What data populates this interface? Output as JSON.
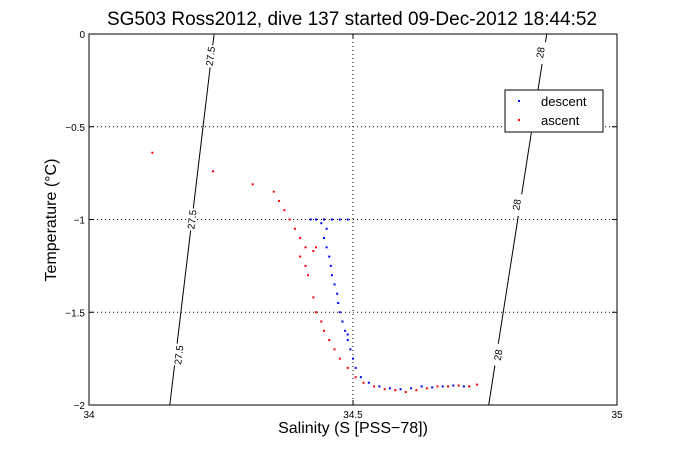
{
  "chart_data": {
    "type": "scatter",
    "title": "SG503 Ross2012, dive 137 started 09-Dec-2012 18:44:52",
    "xlabel": "Salinity (S [PSS−78])",
    "ylabel": "Temperature (°C)",
    "xlim": [
      34,
      35
    ],
    "ylim": [
      -2,
      0
    ],
    "xticks": [
      {
        "value": 34,
        "label": "34"
      },
      {
        "value": 34.5,
        "label": "34.5"
      },
      {
        "value": 35,
        "label": "35"
      }
    ],
    "yticks": [
      {
        "value": 0,
        "label": "0"
      },
      {
        "value": -0.5,
        "label": "−0.5"
      },
      {
        "value": -1,
        "label": "−1"
      },
      {
        "value": -1.5,
        "label": "−1.5"
      },
      {
        "value": -2,
        "label": "−2"
      }
    ],
    "grid": true,
    "legend_position": "top-right",
    "density_contours": [
      {
        "label": "27.5",
        "points": [
          [
            34.153,
            -2
          ],
          [
            34.237,
            0
          ]
        ],
        "label_positions": [
          [
            34.17,
            -1.73
          ],
          [
            34.195,
            -1.0
          ],
          [
            34.23,
            -0.12
          ]
        ]
      },
      {
        "label": "28",
        "points": [
          [
            34.757,
            -2
          ],
          [
            34.867,
            0
          ]
        ],
        "label_positions": [
          [
            34.775,
            -1.73
          ],
          [
            34.81,
            -0.92
          ],
          [
            34.855,
            -0.1
          ]
        ]
      }
    ],
    "series": [
      {
        "name": "descent",
        "color": "#0000ff",
        "points": [
          [
            34.42,
            -1.0
          ],
          [
            34.43,
            -1.0
          ],
          [
            34.445,
            -1.0
          ],
          [
            34.46,
            -1.0
          ],
          [
            34.475,
            -1.0
          ],
          [
            34.49,
            -1.0
          ],
          [
            34.44,
            -1.02
          ],
          [
            34.45,
            -1.05
          ],
          [
            34.445,
            -1.1
          ],
          [
            34.45,
            -1.15
          ],
          [
            34.455,
            -1.2
          ],
          [
            34.458,
            -1.25
          ],
          [
            34.46,
            -1.3
          ],
          [
            34.465,
            -1.35
          ],
          [
            34.47,
            -1.4
          ],
          [
            34.472,
            -1.45
          ],
          [
            34.475,
            -1.5
          ],
          [
            34.48,
            -1.55
          ],
          [
            34.485,
            -1.6
          ],
          [
            34.49,
            -1.62
          ],
          [
            34.49,
            -1.65
          ],
          [
            34.495,
            -1.7
          ],
          [
            34.5,
            -1.75
          ],
          [
            34.505,
            -1.8
          ],
          [
            34.515,
            -1.85
          ],
          [
            34.53,
            -1.88
          ],
          [
            34.55,
            -1.9
          ],
          [
            34.57,
            -1.91
          ],
          [
            34.59,
            -1.915
          ],
          [
            34.61,
            -1.91
          ],
          [
            34.63,
            -1.9
          ],
          [
            34.65,
            -1.905
          ],
          [
            34.67,
            -1.9
          ],
          [
            34.69,
            -1.895
          ],
          [
            34.71,
            -1.9
          ],
          [
            34.72,
            -1.9
          ]
        ]
      },
      {
        "name": "ascent",
        "color": "#ff0000",
        "points": [
          [
            34.12,
            -0.64
          ],
          [
            34.235,
            -0.74
          ],
          [
            34.31,
            -0.81
          ],
          [
            34.35,
            -0.85
          ],
          [
            34.36,
            -0.9
          ],
          [
            34.37,
            -0.95
          ],
          [
            34.38,
            -1.0
          ],
          [
            34.39,
            -1.05
          ],
          [
            34.4,
            -1.1
          ],
          [
            34.41,
            -1.15
          ],
          [
            34.425,
            -1.17
          ],
          [
            34.43,
            -1.15
          ],
          [
            34.4,
            -1.2
          ],
          [
            34.41,
            -1.25
          ],
          [
            34.415,
            -1.3
          ],
          [
            34.425,
            -1.42
          ],
          [
            34.43,
            -1.5
          ],
          [
            34.44,
            -1.55
          ],
          [
            34.445,
            -1.6
          ],
          [
            34.455,
            -1.65
          ],
          [
            34.465,
            -1.7
          ],
          [
            34.475,
            -1.75
          ],
          [
            34.49,
            -1.8
          ],
          [
            34.505,
            -1.85
          ],
          [
            34.52,
            -1.88
          ],
          [
            34.54,
            -1.9
          ],
          [
            34.56,
            -1.915
          ],
          [
            34.58,
            -1.92
          ],
          [
            34.6,
            -1.93
          ],
          [
            34.62,
            -1.92
          ],
          [
            34.64,
            -1.91
          ],
          [
            34.66,
            -1.9
          ],
          [
            34.68,
            -1.9
          ],
          [
            34.7,
            -1.895
          ],
          [
            34.72,
            -1.9
          ],
          [
            34.735,
            -1.89
          ]
        ]
      }
    ]
  }
}
